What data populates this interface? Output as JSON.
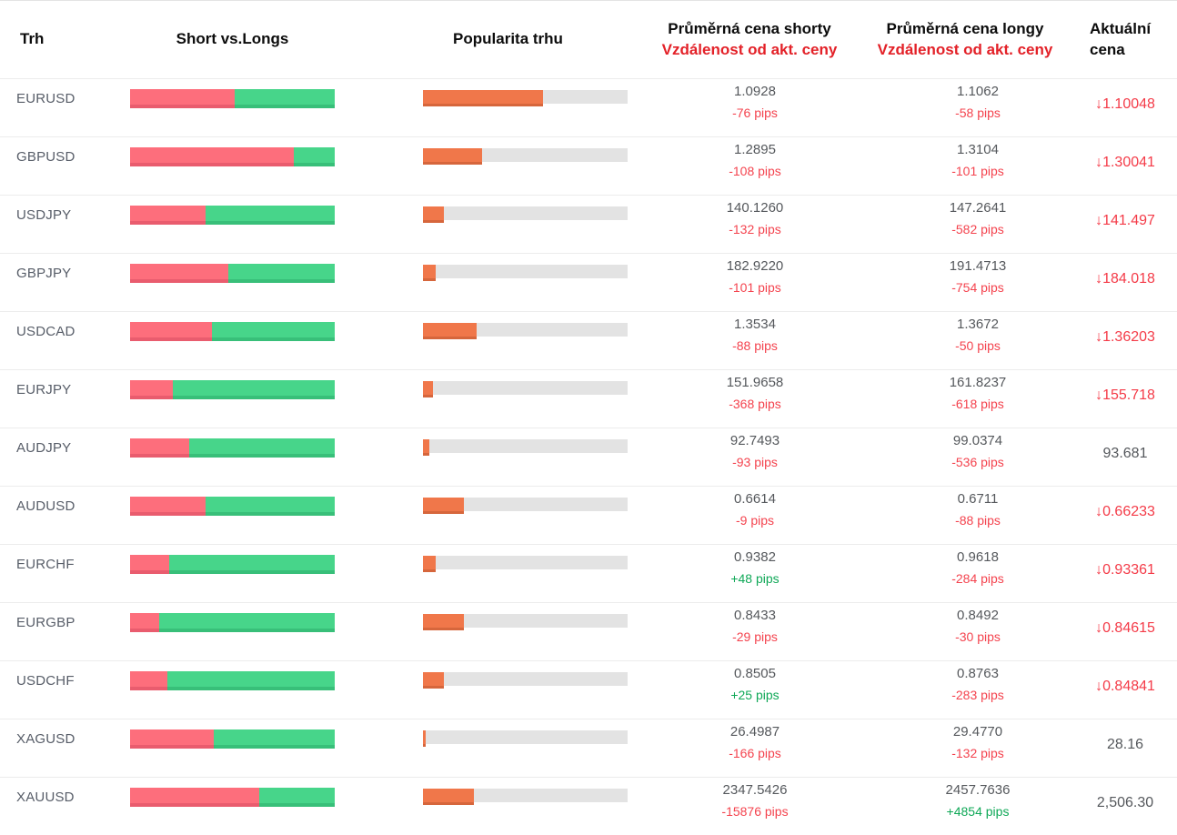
{
  "header": {
    "trh": "Trh",
    "short_vs_longs": "Short vs.Longs",
    "popularita": "Popularita trhu",
    "shorty_line1": "Průměrná cena shorty",
    "shorty_line2": "Vzdálenost od akt. ceny",
    "longy_line1": "Průměrná cena longy",
    "longy_line2": "Vzdálenost od akt. ceny",
    "aktualni_line1": "Aktuální",
    "aktualni_line2": "cena"
  },
  "icons": {
    "down_arrow": "↓"
  },
  "colors": {
    "short_bar": "#fd6e7c",
    "long_bar": "#47d58a",
    "popularity_bar": "#f0774a",
    "popularity_track": "#e3e3e3",
    "pips_negative": "#f4434e",
    "pips_positive": "#0fa857",
    "price_down": "#f43b48",
    "header_red": "#e32128"
  },
  "rows": [
    {
      "market": "EURUSD",
      "short_pct": 51,
      "popularity_pct": 58.5,
      "short_price": "1.0928",
      "short_pips": "-76 pips",
      "short_pips_dir": "neg",
      "long_price": "1.1062",
      "long_pips": "-58 pips",
      "long_pips_dir": "neg",
      "current_price": "1.10048",
      "current_dir": "down"
    },
    {
      "market": "GBPUSD",
      "short_pct": 80,
      "popularity_pct": 29,
      "short_price": "1.2895",
      "short_pips": "-108 pips",
      "short_pips_dir": "neg",
      "long_price": "1.3104",
      "long_pips": "-101 pips",
      "long_pips_dir": "neg",
      "current_price": "1.30041",
      "current_dir": "down"
    },
    {
      "market": "USDJPY",
      "short_pct": 37,
      "popularity_pct": 10,
      "short_price": "140.1260",
      "short_pips": "-132 pips",
      "short_pips_dir": "neg",
      "long_price": "147.2641",
      "long_pips": "-582 pips",
      "long_pips_dir": "neg",
      "current_price": "141.497",
      "current_dir": "down"
    },
    {
      "market": "GBPJPY",
      "short_pct": 48,
      "popularity_pct": 6,
      "short_price": "182.9220",
      "short_pips": "-101 pips",
      "short_pips_dir": "neg",
      "long_price": "191.4713",
      "long_pips": "-754 pips",
      "long_pips_dir": "neg",
      "current_price": "184.018",
      "current_dir": "down"
    },
    {
      "market": "USDCAD",
      "short_pct": 40,
      "popularity_pct": 26,
      "short_price": "1.3534",
      "short_pips": "-88 pips",
      "short_pips_dir": "neg",
      "long_price": "1.3672",
      "long_pips": "-50 pips",
      "long_pips_dir": "neg",
      "current_price": "1.36203",
      "current_dir": "down"
    },
    {
      "market": "EURJPY",
      "short_pct": 21,
      "popularity_pct": 5,
      "short_price": "151.9658",
      "short_pips": "-368 pips",
      "short_pips_dir": "neg",
      "long_price": "161.8237",
      "long_pips": "-618 pips",
      "long_pips_dir": "neg",
      "current_price": "155.718",
      "current_dir": "down"
    },
    {
      "market": "AUDJPY",
      "short_pct": 29,
      "popularity_pct": 3,
      "short_price": "92.7493",
      "short_pips": "-93 pips",
      "short_pips_dir": "neg",
      "long_price": "99.0374",
      "long_pips": "-536 pips",
      "long_pips_dir": "neg",
      "current_price": "93.681",
      "current_dir": "neutral"
    },
    {
      "market": "AUDUSD",
      "short_pct": 37,
      "popularity_pct": 20,
      "short_price": "0.6614",
      "short_pips": "-9 pips",
      "short_pips_dir": "neg",
      "long_price": "0.6711",
      "long_pips": "-88 pips",
      "long_pips_dir": "neg",
      "current_price": "0.66233",
      "current_dir": "down"
    },
    {
      "market": "EURCHF",
      "short_pct": 19,
      "popularity_pct": 6,
      "short_price": "0.9382",
      "short_pips": "+48 pips",
      "short_pips_dir": "pos",
      "long_price": "0.9618",
      "long_pips": "-284 pips",
      "long_pips_dir": "neg",
      "current_price": "0.93361",
      "current_dir": "down"
    },
    {
      "market": "EURGBP",
      "short_pct": 14,
      "popularity_pct": 20,
      "short_price": "0.8433",
      "short_pips": "-29 pips",
      "short_pips_dir": "neg",
      "long_price": "0.8492",
      "long_pips": "-30 pips",
      "long_pips_dir": "neg",
      "current_price": "0.84615",
      "current_dir": "down"
    },
    {
      "market": "USDCHF",
      "short_pct": 18,
      "popularity_pct": 10,
      "short_price": "0.8505",
      "short_pips": "+25 pips",
      "short_pips_dir": "pos",
      "long_price": "0.8763",
      "long_pips": "-283 pips",
      "long_pips_dir": "neg",
      "current_price": "0.84841",
      "current_dir": "down"
    },
    {
      "market": "XAGUSD",
      "short_pct": 41,
      "popularity_pct": 1.5,
      "short_price": "26.4987",
      "short_pips": "-166 pips",
      "short_pips_dir": "neg",
      "long_price": "29.4770",
      "long_pips": "-132 pips",
      "long_pips_dir": "neg",
      "current_price": "28.16",
      "current_dir": "neutral"
    },
    {
      "market": "XAUUSD",
      "short_pct": 63,
      "popularity_pct": 25,
      "short_price": "2347.5426",
      "short_pips": "-15876 pips",
      "short_pips_dir": "neg",
      "long_price": "2457.7636",
      "long_pips": "+4854 pips",
      "long_pips_dir": "pos",
      "current_price": "2,506.30",
      "current_dir": "neutral"
    }
  ]
}
